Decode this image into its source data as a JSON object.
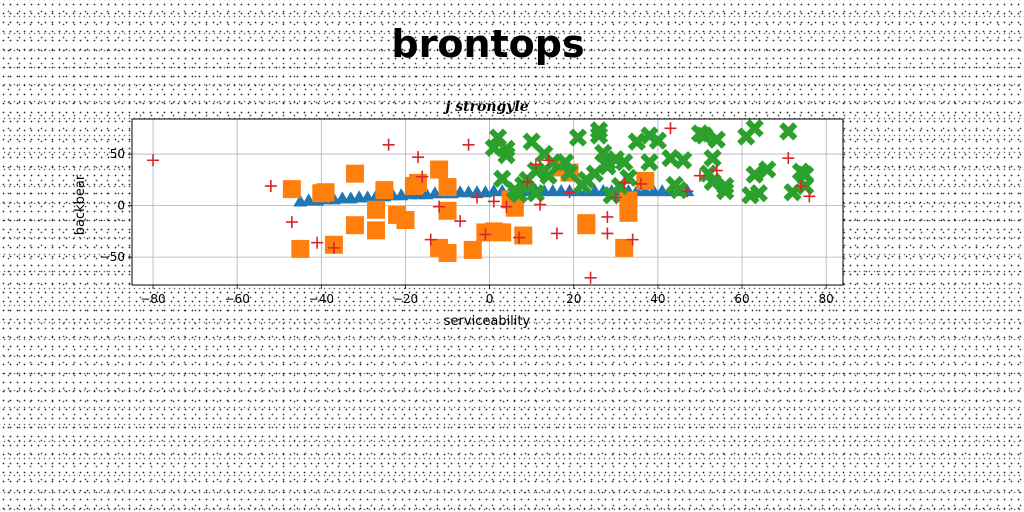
{
  "suptitle": "brontops",
  "chart_data": {
    "type": "scatter",
    "title": "j strongyle",
    "xlabel": "serviceability",
    "ylabel": "backbear",
    "xlim": [
      -85,
      84
    ],
    "ylim": [
      -77,
      84
    ],
    "xticks": [
      -80,
      -60,
      -40,
      -20,
      0,
      20,
      40,
      60,
      80
    ],
    "yticks": [
      -50,
      0,
      50
    ],
    "grid": true,
    "series": [
      {
        "marker": "triangle",
        "color": "#1f77b4",
        "x": [
          -45,
          -43,
          -41,
          -39,
          -37,
          -35,
          -33,
          -31,
          -29,
          -27,
          -25,
          -23,
          -21,
          -19,
          -17,
          -15,
          -13,
          -11,
          -9,
          -7,
          -5,
          -3,
          -1,
          1,
          3,
          5,
          7,
          9,
          11,
          13,
          15,
          17,
          19,
          21,
          23,
          25,
          27,
          29,
          31,
          33,
          35,
          37,
          39,
          41,
          43,
          45,
          47
        ],
        "y": [
          4,
          5,
          5,
          6,
          6,
          7,
          7,
          8,
          8,
          9,
          9,
          10,
          10,
          11,
          11,
          11,
          12,
          12,
          12,
          13,
          13,
          13,
          13,
          14,
          14,
          14,
          14,
          14,
          14,
          14,
          14,
          14,
          14,
          14,
          14,
          14,
          14,
          14,
          14,
          14,
          14,
          14,
          14,
          14,
          14,
          14,
          14
        ]
      },
      {
        "marker": "square",
        "color": "#ff7f0e",
        "x": [
          -47,
          -45,
          -40,
          -39,
          -37,
          -32,
          -32,
          -27,
          -27,
          -25,
          -22,
          -20,
          -18,
          -17,
          -12,
          -12,
          -10,
          -10,
          -10,
          -4,
          -1,
          1,
          3,
          6,
          5,
          8,
          17,
          19,
          23,
          23,
          32,
          33,
          33,
          37
        ],
        "y": [
          16,
          -42,
          12,
          13,
          -38,
          31,
          -19,
          -4,
          -24,
          15,
          -9,
          -14,
          19,
          22,
          -41,
          35,
          -46,
          18,
          -5,
          -43,
          -26,
          -25,
          -26,
          -2,
          6,
          -29,
          37,
          32,
          -17,
          -19,
          -41,
          -7,
          5,
          24
        ]
      },
      {
        "marker": "x",
        "color": "#2ca02c",
        "x": [
          1,
          2,
          3,
          4,
          4,
          6,
          7,
          8,
          9,
          10,
          11,
          11,
          13,
          14,
          15,
          18,
          19,
          21,
          22,
          23,
          25,
          26,
          26,
          27,
          28,
          28,
          29,
          30,
          31,
          32,
          33,
          35,
          38,
          38,
          40,
          43,
          44,
          45,
          46,
          50,
          51,
          52,
          53,
          53,
          54,
          56,
          56,
          61,
          62,
          63,
          63,
          64,
          66,
          71,
          72,
          74,
          75,
          75
        ],
        "y": [
          56,
          66,
          26,
          49,
          55,
          15,
          11,
          20,
          25,
          62,
          34,
          12,
          50,
          29,
          42,
          42,
          32,
          66,
          20,
          25,
          31,
          73,
          68,
          51,
          38,
          42,
          10,
          45,
          19,
          42,
          27,
          62,
          42,
          68,
          63,
          46,
          20,
          15,
          44,
          70,
          68,
          31,
          23,
          46,
          64,
          19,
          14,
          67,
          10,
          75,
          30,
          12,
          35,
          72,
          13,
          33,
          19,
          30
        ]
      },
      {
        "marker": "plus",
        "color": "#d62728",
        "x": [
          -80,
          -52,
          -47,
          -41,
          -37,
          -24,
          -17,
          -16,
          -14,
          -12,
          -7,
          -5,
          -3,
          -1,
          1,
          4,
          7,
          9,
          11,
          12,
          14,
          16,
          19,
          24,
          28,
          28,
          30,
          32,
          34,
          36,
          43,
          47,
          50,
          54,
          71,
          74,
          76
        ],
        "y": [
          44,
          19,
          -16,
          -36,
          -41,
          59,
          47,
          28,
          -33,
          -1,
          -15,
          59,
          8,
          -28,
          4,
          -1,
          -31,
          23,
          40,
          1,
          44,
          -27,
          13,
          -70,
          -11,
          -27,
          8,
          22,
          -33,
          21,
          75,
          14,
          29,
          34,
          46,
          19,
          9
        ]
      }
    ]
  }
}
